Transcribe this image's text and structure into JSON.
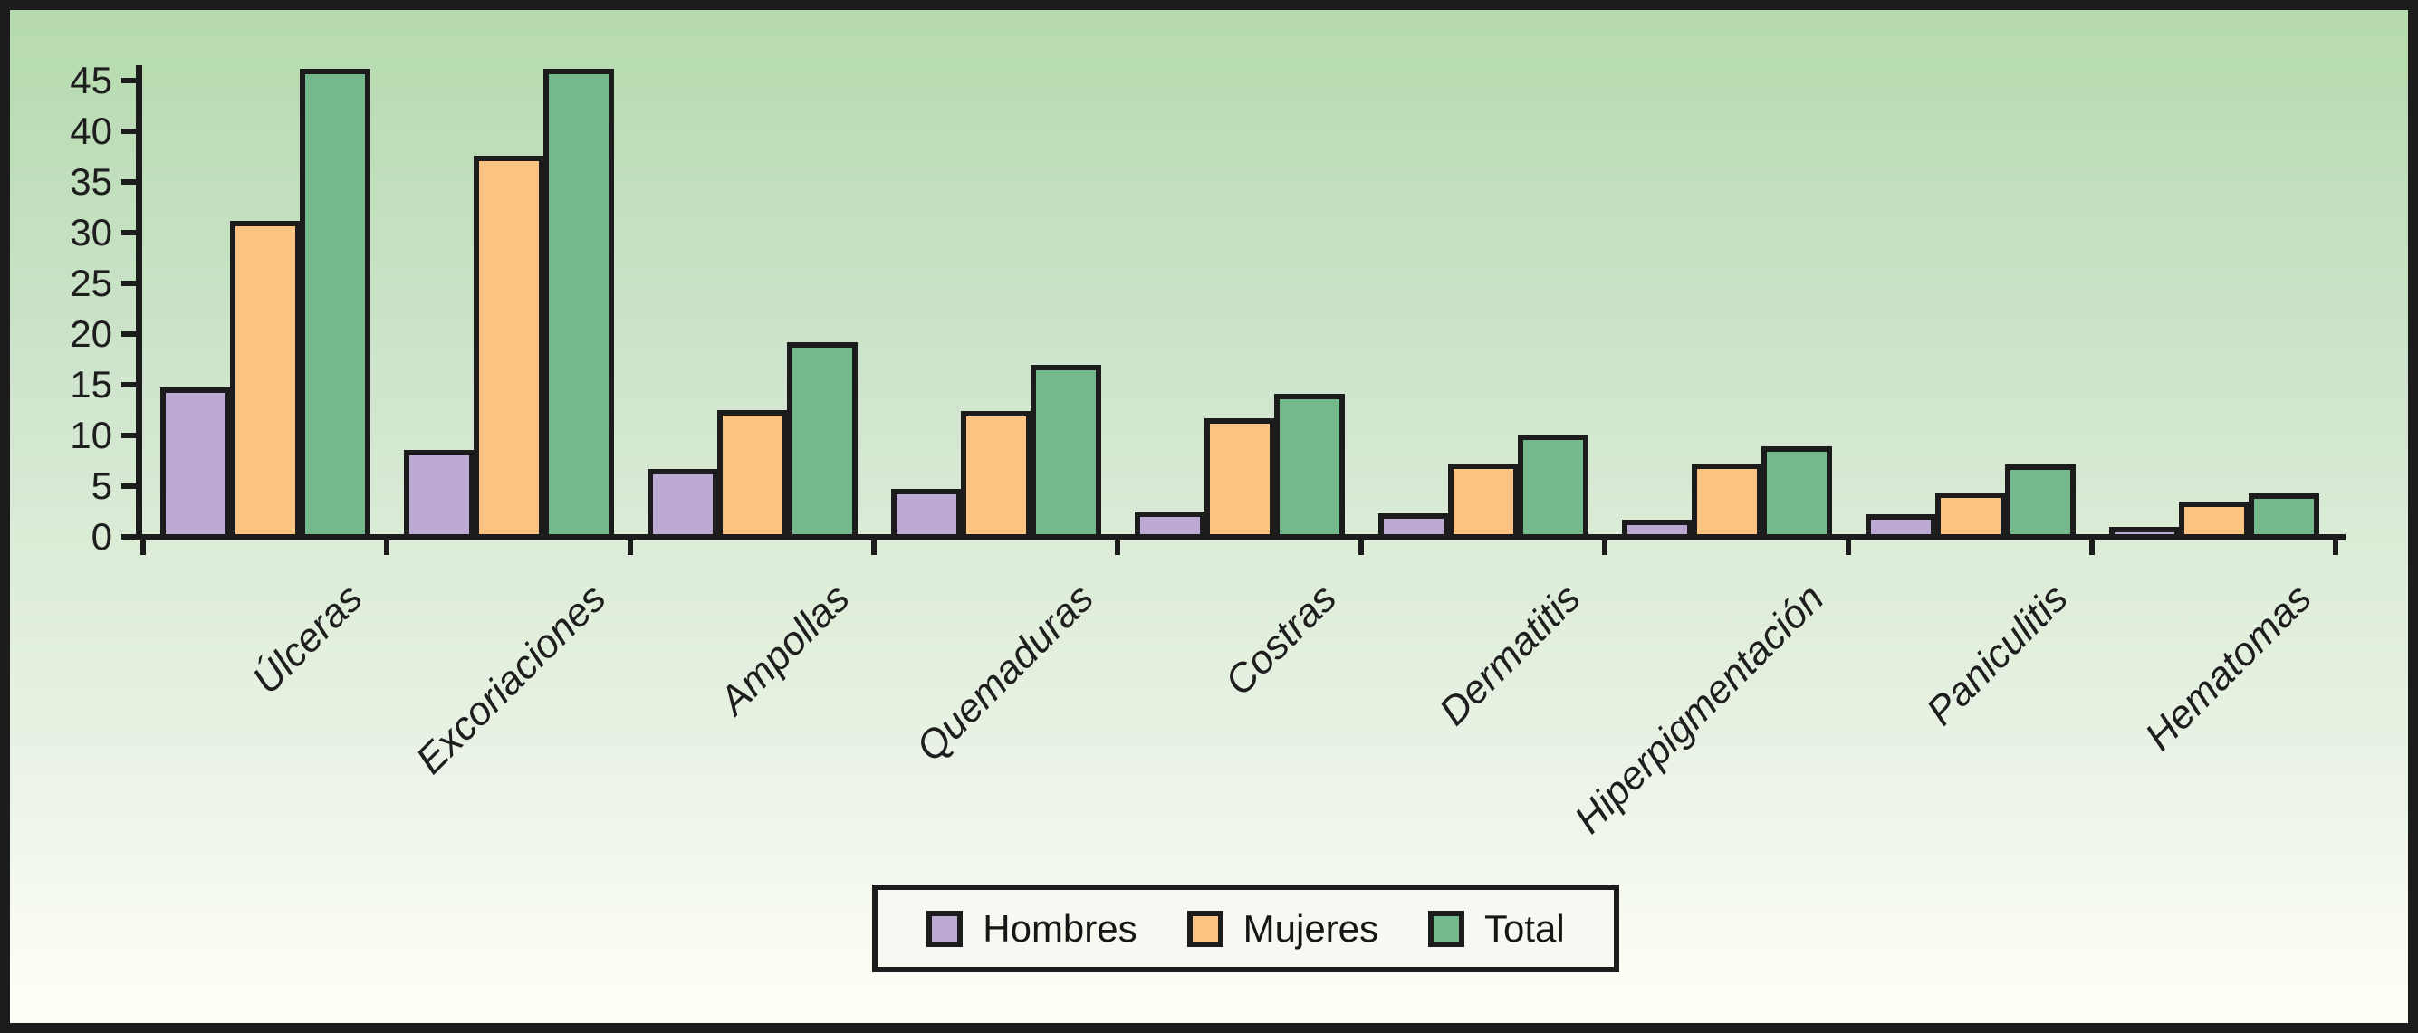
{
  "chart_data": {
    "type": "bar",
    "title": "",
    "xlabel": "",
    "ylabel": "",
    "categories": [
      "Úlceras",
      "Excoriaciones",
      "Ampollas",
      "Quemaduras",
      "Costras",
      "Dermatitis",
      "Hiperpigmentación",
      "Paniculitis",
      "Hematomas"
    ],
    "series": [
      {
        "name": "Hombres",
        "color": "#bcaad4",
        "values": [
          14.7,
          8.6,
          6.7,
          4.7,
          2.5,
          2.3,
          1.7,
          2.2,
          1.0
        ]
      },
      {
        "name": "Mujeres",
        "color": "#fac381",
        "values": [
          31.2,
          37.6,
          12.5,
          12.4,
          11.7,
          7.2,
          7.2,
          4.4,
          3.5
        ]
      },
      {
        "name": "Total",
        "color": "#74b98b",
        "values": [
          46.2,
          46.2,
          19.2,
          17.0,
          14.1,
          10.1,
          8.9,
          7.1,
          4.3
        ]
      }
    ],
    "ylim": [
      0,
      46.5
    ],
    "yticks": [
      0,
      5,
      10,
      15,
      20,
      25,
      30,
      35,
      40,
      45
    ],
    "grid": false,
    "legend_position": "bottom",
    "bar_orientation": "vertical",
    "category_label_style": "italic, rotated 45 degrees"
  },
  "colors": {
    "background_top": "#b6dab0",
    "background_bottom": "#fffef6",
    "axis": "#1c1c1c",
    "bar_border": "#1c1c1c",
    "frame": "#1c1c1c",
    "legend_background": "#f5f9f2",
    "text": "#1e1e1e"
  }
}
